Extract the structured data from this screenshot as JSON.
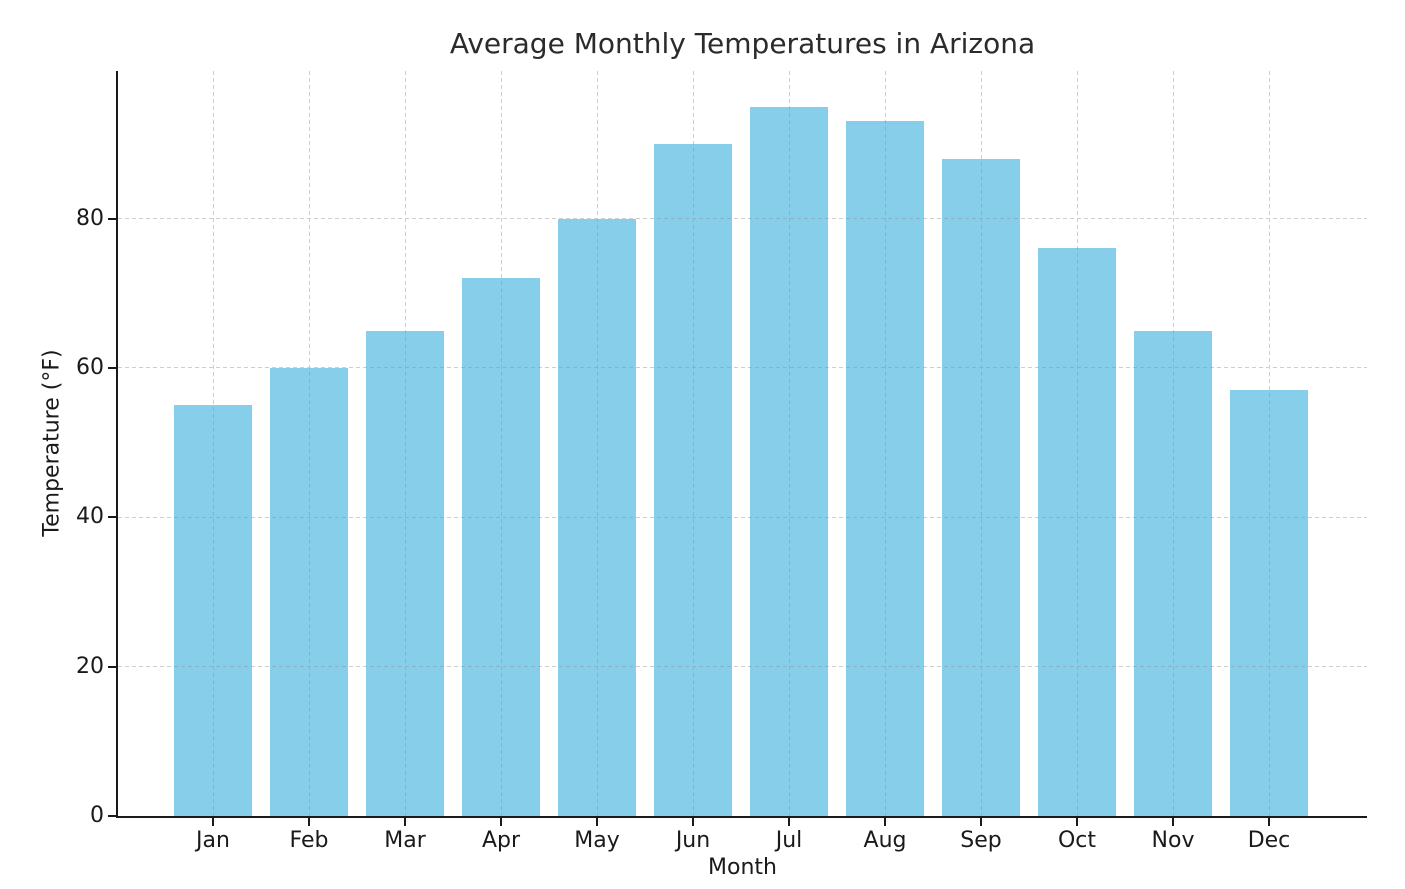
{
  "chart_data": {
    "type": "bar",
    "title": "Average Monthly Temperatures in Arizona",
    "xlabel": "Month",
    "ylabel": "Temperature (°F)",
    "categories": [
      "Jan",
      "Feb",
      "Mar",
      "Apr",
      "May",
      "Jun",
      "Jul",
      "Aug",
      "Sep",
      "Oct",
      "Nov",
      "Dec"
    ],
    "values": [
      55,
      60,
      65,
      72,
      80,
      90,
      95,
      93,
      88,
      76,
      65,
      57
    ],
    "ylim": [
      0,
      99.75
    ],
    "yticks": [
      "0",
      "20",
      "40",
      "60",
      "80"
    ],
    "bar_color": "#87CEEB",
    "grid": {
      "style": "dashed",
      "color": "#b0b0b0",
      "horizontal": true,
      "vertical": true,
      "drawn_over_bars": true
    },
    "legend_position": "none",
    "spines": [
      "left",
      "bottom"
    ]
  }
}
